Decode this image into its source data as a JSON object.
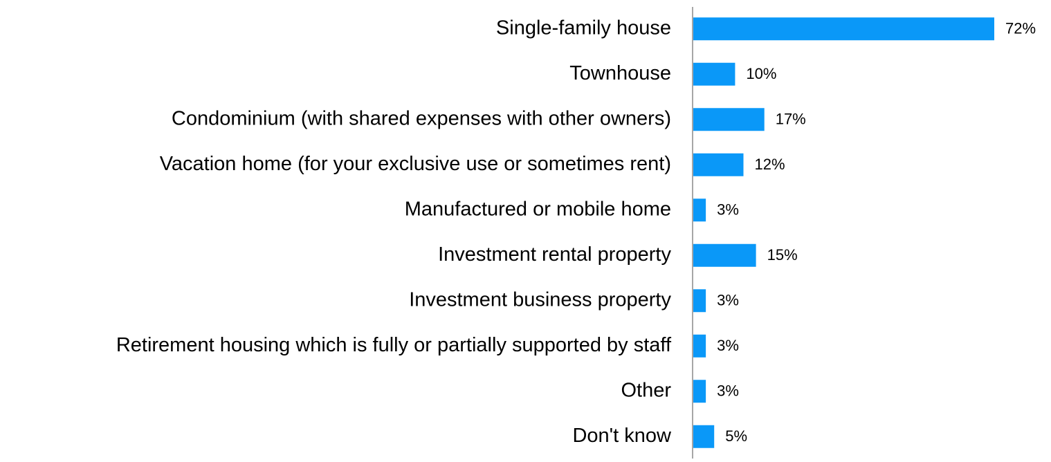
{
  "chart_data": {
    "type": "bar",
    "orientation": "horizontal",
    "categories": [
      "Single-family house",
      "Townhouse",
      "Condominium (with shared expenses with other owners)",
      "Vacation home (for your exclusive use or sometimes rent)",
      "Manufactured or mobile home",
      "Investment rental property",
      "Investment business property",
      "Retirement housing which is fully or partially supported by staff",
      "Other",
      "Don't know"
    ],
    "values": [
      72,
      10,
      17,
      12,
      3,
      15,
      3,
      3,
      3,
      5
    ],
    "value_labels": [
      "72%",
      "10%",
      "17%",
      "12%",
      "3%",
      "15%",
      "3%",
      "3%",
      "3%",
      "5%"
    ],
    "color": "#0a98f8"
  }
}
